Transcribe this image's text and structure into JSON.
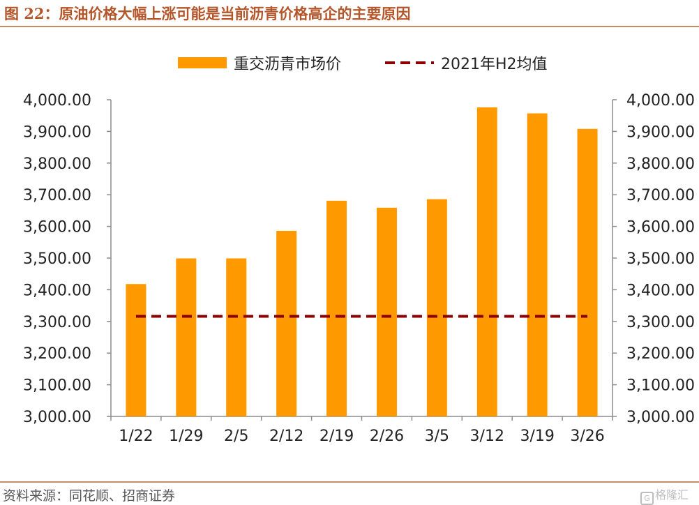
{
  "figure": {
    "title": "图 22：原油价格大幅上涨可能是当前沥青价格高企的主要原因",
    "source": "资料来源：同花顺、招商证券",
    "watermark": "格隆汇"
  },
  "chart_data": {
    "type": "bar",
    "categories": [
      "1/22",
      "1/29",
      "2/5",
      "2/12",
      "2/19",
      "2/26",
      "3/5",
      "3/12",
      "3/19",
      "3/26"
    ],
    "series": [
      {
        "name": "重交沥青市场价",
        "kind": "bar",
        "color": "#ff9900",
        "values": [
          3418,
          3499,
          3499,
          3586,
          3681,
          3659,
          3686,
          3976,
          3957,
          3908
        ]
      },
      {
        "name": "2021年H2均值",
        "kind": "dashed-line",
        "color": "#8b0000",
        "values": [
          3316,
          3316,
          3316,
          3316,
          3316,
          3316,
          3316,
          3316,
          3316,
          3316
        ]
      }
    ],
    "ylim": [
      3000,
      4000
    ],
    "yticks": [
      "3,000.00",
      "3,100.00",
      "3,200.00",
      "3,300.00",
      "3,400.00",
      "3,500.00",
      "3,600.00",
      "3,700.00",
      "3,800.00",
      "3,900.00",
      "4,000.00"
    ],
    "secondary_y": true,
    "legend_position": "top",
    "grid": false,
    "xlabel": "",
    "ylabel": ""
  }
}
